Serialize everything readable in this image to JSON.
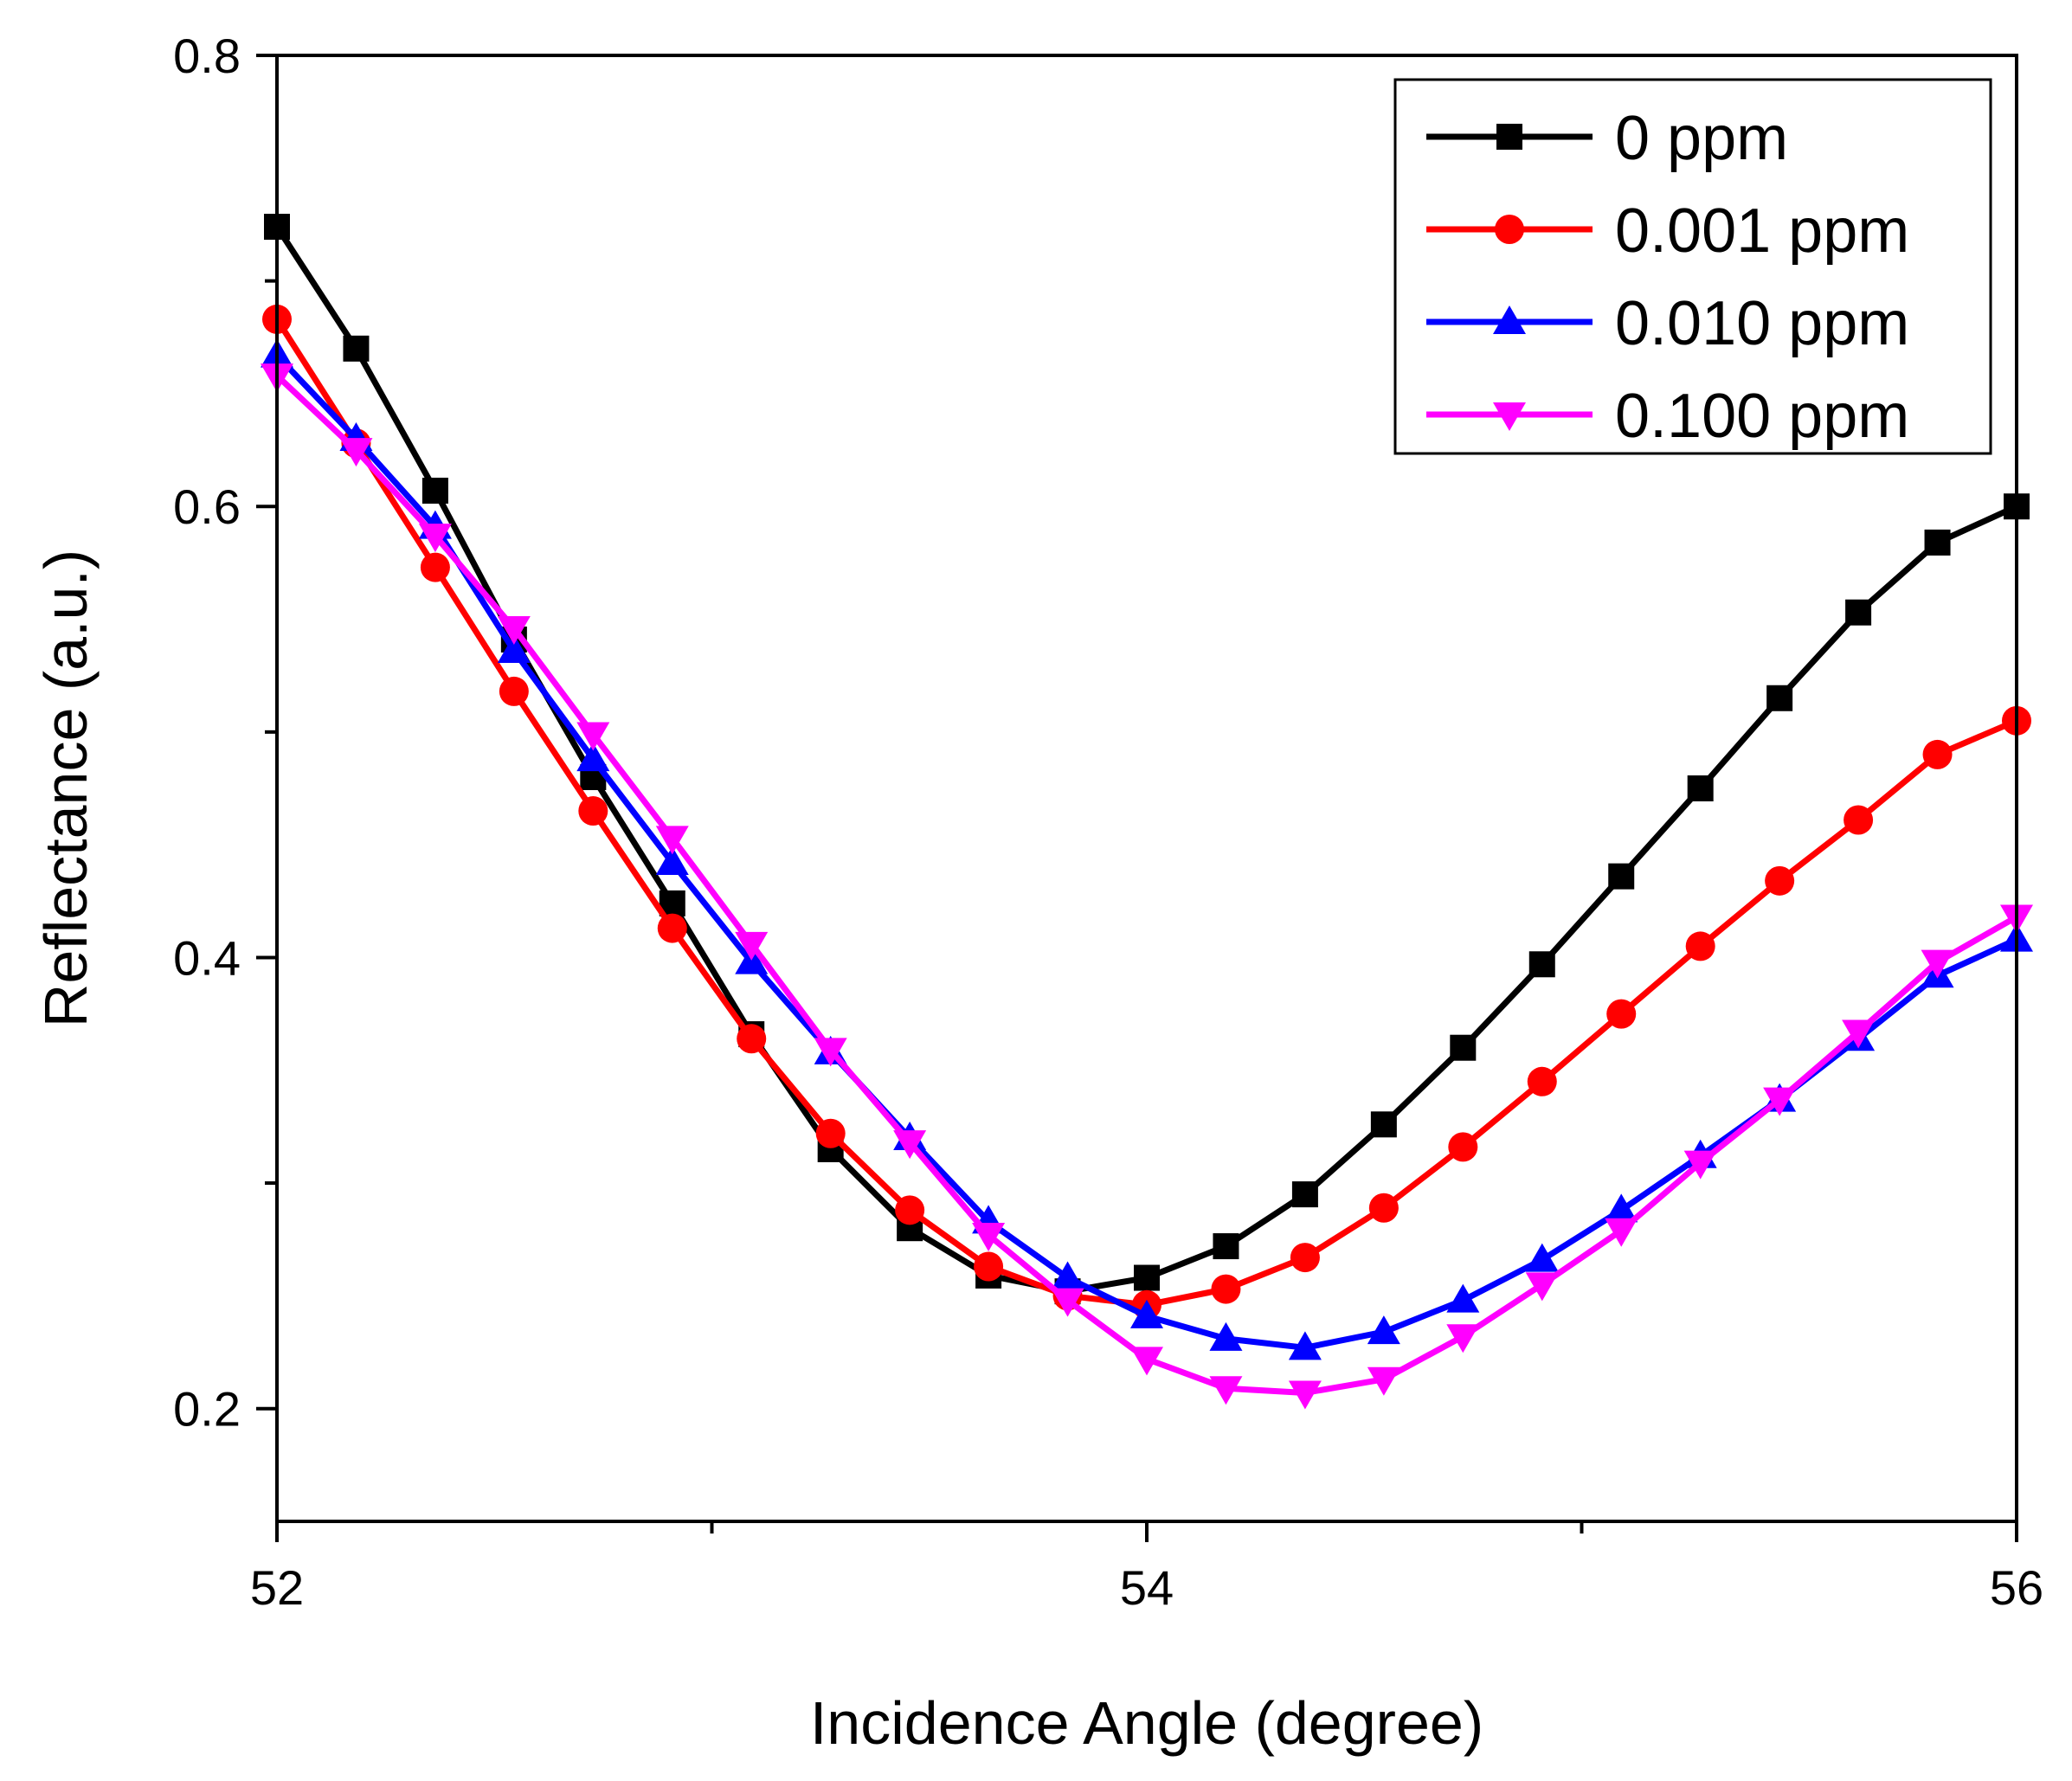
{
  "chart_data": {
    "type": "line",
    "title": "",
    "xlabel": "Incidence Angle (degree)",
    "ylabel": "Reflectance (a.u.)",
    "xlim": [
      52,
      56
    ],
    "ylim": [
      0.15,
      0.8
    ],
    "x_ticks": [
      52,
      54,
      56
    ],
    "x_tick_labels": [
      "52",
      "54",
      "56"
    ],
    "x_minor_ticks": [
      53,
      55
    ],
    "y_ticks": [
      0.2,
      0.4,
      0.6,
      0.8
    ],
    "y_tick_labels": [
      "0.2",
      "0.4",
      "0.6",
      "0.8"
    ],
    "y_minor_ticks": [
      0.3,
      0.5,
      0.7
    ],
    "legend_position": "top-right",
    "x": [
      52.0,
      52.182,
      52.364,
      52.545,
      52.727,
      52.909,
      53.091,
      53.273,
      53.455,
      53.636,
      53.818,
      54.0,
      54.182,
      54.364,
      54.545,
      54.727,
      54.909,
      55.091,
      55.273,
      55.455,
      55.636,
      55.818,
      56.0
    ],
    "series": [
      {
        "name": "0 ppm",
        "color": "#000000",
        "marker": "square",
        "values": [
          0.724,
          0.67,
          0.607,
          0.541,
          0.48,
          0.424,
          0.366,
          0.315,
          0.28,
          0.259,
          0.252,
          0.258,
          0.272,
          0.295,
          0.326,
          0.36,
          0.397,
          0.436,
          0.475,
          0.515,
          0.553,
          0.584,
          0.6
        ]
      },
      {
        "name": "0.001 ppm",
        "color": "#ff0000",
        "marker": "circle",
        "values": [
          0.683,
          0.628,
          0.573,
          0.518,
          0.465,
          0.413,
          0.364,
          0.322,
          0.288,
          0.263,
          0.25,
          0.246,
          0.253,
          0.267,
          0.289,
          0.316,
          0.345,
          0.375,
          0.405,
          0.434,
          0.461,
          0.49,
          0.505
        ]
      },
      {
        "name": "0.010 ppm",
        "color": "#0000ff",
        "marker": "triangle-up",
        "values": [
          0.667,
          0.63,
          0.591,
          0.536,
          0.488,
          0.442,
          0.398,
          0.358,
          0.32,
          0.283,
          0.258,
          0.241,
          0.231,
          0.227,
          0.234,
          0.248,
          0.266,
          0.288,
          0.312,
          0.337,
          0.364,
          0.392,
          0.408
        ]
      },
      {
        "name": "0.100 ppm",
        "color": "#ff00ff",
        "marker": "triangle-down",
        "values": [
          0.658,
          0.625,
          0.587,
          0.546,
          0.499,
          0.453,
          0.406,
          0.359,
          0.318,
          0.277,
          0.248,
          0.222,
          0.209,
          0.207,
          0.213,
          0.232,
          0.255,
          0.279,
          0.309,
          0.337,
          0.367,
          0.398,
          0.418
        ]
      }
    ]
  }
}
